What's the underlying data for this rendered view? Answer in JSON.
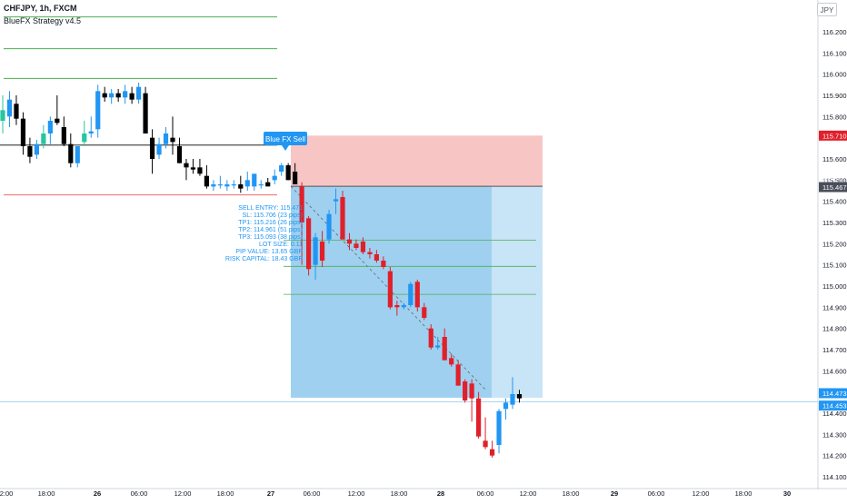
{
  "header": {
    "symbol_line": "CHFJPY, 1h, FXCM",
    "strategy_name": "BlueFX Strategy v4.5"
  },
  "currency_button": "JPY",
  "colors": {
    "up": "#2196f3",
    "up_alt": "#26c6a0",
    "down": "#000000",
    "down_alt": "#e0202a",
    "risk_zone": "#f8c5c5",
    "profit_zone": "#9fd0f0",
    "profit_zone_light": "#c8e4f7",
    "green_level": "#4caf50",
    "red_level": "#f06a6a",
    "pivot_line": "#000000",
    "signal_label_bg": "#2196f3",
    "price_badge_red": "#e0202a",
    "price_badge_dark": "#4a4e5a",
    "price_badge_blue": "#2196f3"
  },
  "signal": {
    "label": "Blue FX Sell",
    "info_lines": [
      "SELL ENTRY: 115.471",
      "SL: 115.706 (23 pips)",
      "TP1: 115.216 (26 pips)",
      "TP2: 114.961 (51 pips)",
      "TP3: 115.093 (38 pips)",
      "LOT SIZE: 0.11",
      "PIP VALUE: 13.65 GBP",
      "RISK CAPITAL: 18.43 GBP"
    ]
  },
  "chart_data": {
    "type": "candlestick",
    "symbol": "CHFJPY",
    "timeframe": "1h",
    "ylim": [
      114.08,
      116.3
    ],
    "y_ticks": [
      "116.200",
      "116.100",
      "116.000",
      "115.900",
      "115.800",
      "115.700",
      "115.600",
      "115.500",
      "115.400",
      "115.300",
      "115.200",
      "115.100",
      "115.000",
      "114.900",
      "114.800",
      "114.700",
      "114.600",
      "114.500",
      "114.400",
      "114.300",
      "114.200",
      "114.100"
    ],
    "y_top_tick": "1",
    "x_tick_labels": [
      "2:00",
      "18:00",
      "26",
      "06:00",
      "12:00",
      "18:00",
      "27",
      "06:00",
      "12:00",
      "18:00",
      "28",
      "06:00",
      "12:00",
      "18:00",
      "29",
      "06:00",
      "12:00",
      "18:00",
      "30"
    ],
    "x_tick_bold": [
      "26",
      "27",
      "28",
      "29",
      "30"
    ],
    "price_badges": [
      {
        "label": "115.710",
        "value": 115.71,
        "style": "red"
      },
      {
        "label": "115.467",
        "value": 115.467,
        "style": "dark"
      },
      {
        "label": "114.473",
        "value": 114.473,
        "style": "blue"
      },
      {
        "label": "114.453",
        "value": 114.453,
        "style": "blue"
      }
    ],
    "faint_labels": [
      {
        "label": "115.500",
        "value": 115.5
      },
      {
        "label": "114.500",
        "value": 114.5
      }
    ],
    "levels": {
      "green_left": [
        116.27,
        116.12,
        115.98
      ],
      "red_left": 115.43,
      "pivot_left": 115.665,
      "tp_right": [
        115.216,
        115.093,
        114.961
      ],
      "current_price": 114.453
    },
    "position": {
      "entry": 115.471,
      "stop": 115.71,
      "target": 114.473
    },
    "candles": [
      {
        "o": 115.78,
        "h": 115.9,
        "l": 115.72,
        "c": 115.83
      },
      {
        "o": 115.8,
        "h": 115.92,
        "l": 115.75,
        "c": 115.88
      },
      {
        "o": 115.86,
        "h": 115.9,
        "l": 115.76,
        "c": 115.79
      },
      {
        "o": 115.79,
        "h": 115.82,
        "l": 115.62,
        "c": 115.66
      },
      {
        "o": 115.66,
        "h": 115.7,
        "l": 115.58,
        "c": 115.61
      },
      {
        "o": 115.62,
        "h": 115.69,
        "l": 115.6,
        "c": 115.67
      },
      {
        "o": 115.67,
        "h": 115.76,
        "l": 115.65,
        "c": 115.72
      },
      {
        "o": 115.72,
        "h": 115.8,
        "l": 115.67,
        "c": 115.78
      },
      {
        "o": 115.79,
        "h": 115.9,
        "l": 115.76,
        "c": 115.77
      },
      {
        "o": 115.75,
        "h": 115.8,
        "l": 115.66,
        "c": 115.67
      },
      {
        "o": 115.67,
        "h": 115.72,
        "l": 115.56,
        "c": 115.58
      },
      {
        "o": 115.58,
        "h": 115.66,
        "l": 115.56,
        "c": 115.66
      },
      {
        "o": 115.68,
        "h": 115.78,
        "l": 115.66,
        "c": 115.72
      },
      {
        "o": 115.72,
        "h": 115.8,
        "l": 115.7,
        "c": 115.73
      },
      {
        "o": 115.74,
        "h": 115.95,
        "l": 115.7,
        "c": 115.92
      },
      {
        "o": 115.91,
        "h": 115.94,
        "l": 115.87,
        "c": 115.89
      },
      {
        "o": 115.89,
        "h": 115.93,
        "l": 115.86,
        "c": 115.91
      },
      {
        "o": 115.91,
        "h": 115.93,
        "l": 115.87,
        "c": 115.89
      },
      {
        "o": 115.89,
        "h": 115.95,
        "l": 115.86,
        "c": 115.92
      },
      {
        "o": 115.91,
        "h": 115.94,
        "l": 115.86,
        "c": 115.88
      },
      {
        "o": 115.88,
        "h": 115.96,
        "l": 115.86,
        "c": 115.94
      },
      {
        "o": 115.91,
        "h": 115.94,
        "l": 115.72,
        "c": 115.72
      },
      {
        "o": 115.7,
        "h": 115.74,
        "l": 115.53,
        "c": 115.6
      },
      {
        "o": 115.62,
        "h": 115.7,
        "l": 115.6,
        "c": 115.67
      },
      {
        "o": 115.67,
        "h": 115.75,
        "l": 115.65,
        "c": 115.72
      },
      {
        "o": 115.7,
        "h": 115.8,
        "l": 115.62,
        "c": 115.68
      },
      {
        "o": 115.66,
        "h": 115.7,
        "l": 115.58,
        "c": 115.58
      },
      {
        "o": 115.58,
        "h": 115.6,
        "l": 115.5,
        "c": 115.56
      },
      {
        "o": 115.56,
        "h": 115.6,
        "l": 115.53,
        "c": 115.55
      },
      {
        "o": 115.56,
        "h": 115.6,
        "l": 115.52,
        "c": 115.53
      },
      {
        "o": 115.52,
        "h": 115.57,
        "l": 115.46,
        "c": 115.47
      },
      {
        "o": 115.47,
        "h": 115.5,
        "l": 115.45,
        "c": 115.48
      },
      {
        "o": 115.48,
        "h": 115.52,
        "l": 115.46,
        "c": 115.48
      },
      {
        "o": 115.47,
        "h": 115.5,
        "l": 115.45,
        "c": 115.48
      },
      {
        "o": 115.48,
        "h": 115.5,
        "l": 115.46,
        "c": 115.48
      },
      {
        "o": 115.48,
        "h": 115.52,
        "l": 115.44,
        "c": 115.46
      },
      {
        "o": 115.47,
        "h": 115.54,
        "l": 115.45,
        "c": 115.5
      },
      {
        "o": 115.47,
        "h": 115.53,
        "l": 115.45,
        "c": 115.53
      },
      {
        "o": 115.48,
        "h": 115.5,
        "l": 115.46,
        "c": 115.48
      },
      {
        "o": 115.49,
        "h": 115.51,
        "l": 115.47,
        "c": 115.47
      },
      {
        "o": 115.5,
        "h": 115.55,
        "l": 115.48,
        "c": 115.52
      },
      {
        "o": 115.54,
        "h": 115.58,
        "l": 115.52,
        "c": 115.57
      },
      {
        "o": 115.57,
        "h": 115.58,
        "l": 115.5,
        "c": 115.5
      },
      {
        "o": 115.54,
        "h": 115.58,
        "l": 115.48,
        "c": 115.48
      },
      {
        "o": 115.47,
        "h": 115.49,
        "l": 115.1,
        "c": 115.3
      },
      {
        "o": 115.32,
        "h": 115.33,
        "l": 115.05,
        "c": 115.08
      },
      {
        "o": 115.1,
        "h": 115.25,
        "l": 115.03,
        "c": 115.23
      },
      {
        "o": 115.21,
        "h": 115.26,
        "l": 115.09,
        "c": 115.12
      },
      {
        "o": 115.22,
        "h": 115.36,
        "l": 115.2,
        "c": 115.34
      },
      {
        "o": 115.4,
        "h": 115.46,
        "l": 115.34,
        "c": 115.41
      },
      {
        "o": 115.42,
        "h": 115.45,
        "l": 115.22,
        "c": 115.22
      },
      {
        "o": 115.22,
        "h": 115.25,
        "l": 115.17,
        "c": 115.2
      },
      {
        "o": 115.2,
        "h": 115.22,
        "l": 115.17,
        "c": 115.18
      },
      {
        "o": 115.21,
        "h": 115.23,
        "l": 115.15,
        "c": 115.16
      },
      {
        "o": 115.16,
        "h": 115.18,
        "l": 115.13,
        "c": 115.15
      },
      {
        "o": 115.15,
        "h": 115.17,
        "l": 115.11,
        "c": 115.12
      },
      {
        "o": 115.12,
        "h": 115.14,
        "l": 115.08,
        "c": 115.09
      },
      {
        "o": 115.07,
        "h": 115.09,
        "l": 114.89,
        "c": 114.9
      },
      {
        "o": 114.91,
        "h": 114.93,
        "l": 114.86,
        "c": 114.9
      },
      {
        "o": 114.9,
        "h": 114.92,
        "l": 114.89,
        "c": 114.91
      },
      {
        "o": 114.91,
        "h": 115.02,
        "l": 114.9,
        "c": 115.01
      },
      {
        "o": 115.02,
        "h": 115.03,
        "l": 114.88,
        "c": 114.9
      },
      {
        "o": 114.9,
        "h": 114.92,
        "l": 114.84,
        "c": 114.85
      },
      {
        "o": 114.8,
        "h": 114.82,
        "l": 114.7,
        "c": 114.71
      },
      {
        "o": 114.71,
        "h": 114.76,
        "l": 114.7,
        "c": 114.72
      },
      {
        "o": 114.76,
        "h": 114.8,
        "l": 114.65,
        "c": 114.65
      },
      {
        "o": 114.66,
        "h": 114.68,
        "l": 114.62,
        "c": 114.63
      },
      {
        "o": 114.63,
        "h": 114.65,
        "l": 114.53,
        "c": 114.53
      },
      {
        "o": 114.55,
        "h": 114.56,
        "l": 114.45,
        "c": 114.46
      },
      {
        "o": 114.54,
        "h": 114.56,
        "l": 114.36,
        "c": 114.47
      },
      {
        "o": 114.47,
        "h": 114.5,
        "l": 114.28,
        "c": 114.29
      },
      {
        "o": 114.27,
        "h": 114.38,
        "l": 114.23,
        "c": 114.24
      },
      {
        "o": 114.23,
        "h": 114.27,
        "l": 114.19,
        "c": 114.2
      },
      {
        "o": 114.25,
        "h": 114.42,
        "l": 114.21,
        "c": 114.41
      },
      {
        "o": 114.42,
        "h": 114.47,
        "l": 114.37,
        "c": 114.45
      },
      {
        "o": 114.44,
        "h": 114.57,
        "l": 114.42,
        "c": 114.49
      },
      {
        "o": 114.49,
        "h": 114.51,
        "l": 114.45,
        "c": 114.47
      }
    ]
  }
}
